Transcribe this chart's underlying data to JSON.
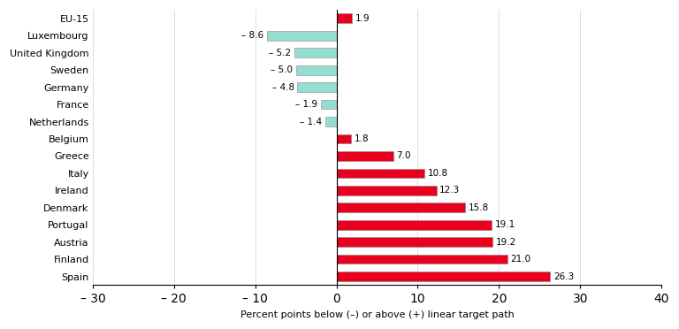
{
  "categories": [
    "Spain",
    "Finland",
    "Austria",
    "Portugal",
    "Denmark",
    "Ireland",
    "Italy",
    "Greece",
    "Belgium",
    "Netherlands",
    "France",
    "Germany",
    "Sweden",
    "United Kingdom",
    "Luxembourg",
    "EU-15"
  ],
  "values": [
    26.3,
    21.0,
    19.2,
    19.1,
    15.8,
    12.3,
    10.8,
    7.0,
    1.8,
    -1.4,
    -1.9,
    -4.8,
    -5.0,
    -5.2,
    -8.6,
    1.9
  ],
  "bar_color_positive": "#e8001e",
  "bar_color_negative": "#96ddd1",
  "bar_color_eu15": "#e8001e",
  "xlabel": "Percent points below (–) or above (+) linear target path",
  "xlim": [
    -30,
    40
  ],
  "xticks": [
    -30,
    -20,
    -10,
    0,
    10,
    20,
    30,
    40
  ],
  "xticklabels": [
    "– 30",
    "– 20",
    "– 10",
    "0",
    "10",
    "20",
    "30",
    "40"
  ],
  "background_color": "#ffffff",
  "grid_color": "#d0d0d0",
  "label_fontsize": 8.0,
  "tick_fontsize": 8.0,
  "value_fontsize": 7.5,
  "bar_height": 0.55
}
